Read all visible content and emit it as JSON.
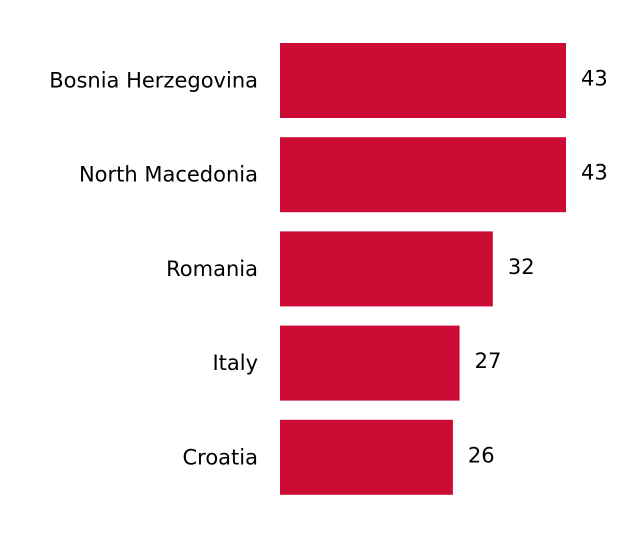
{
  "chart_data": {
    "type": "barh",
    "categories": [
      "Bosnia Herzegovina",
      "North Macedonia",
      "Romania",
      "Italy",
      "Croatia"
    ],
    "values": [
      43,
      43,
      32,
      27,
      26
    ],
    "color": "#cc0c35"
  }
}
